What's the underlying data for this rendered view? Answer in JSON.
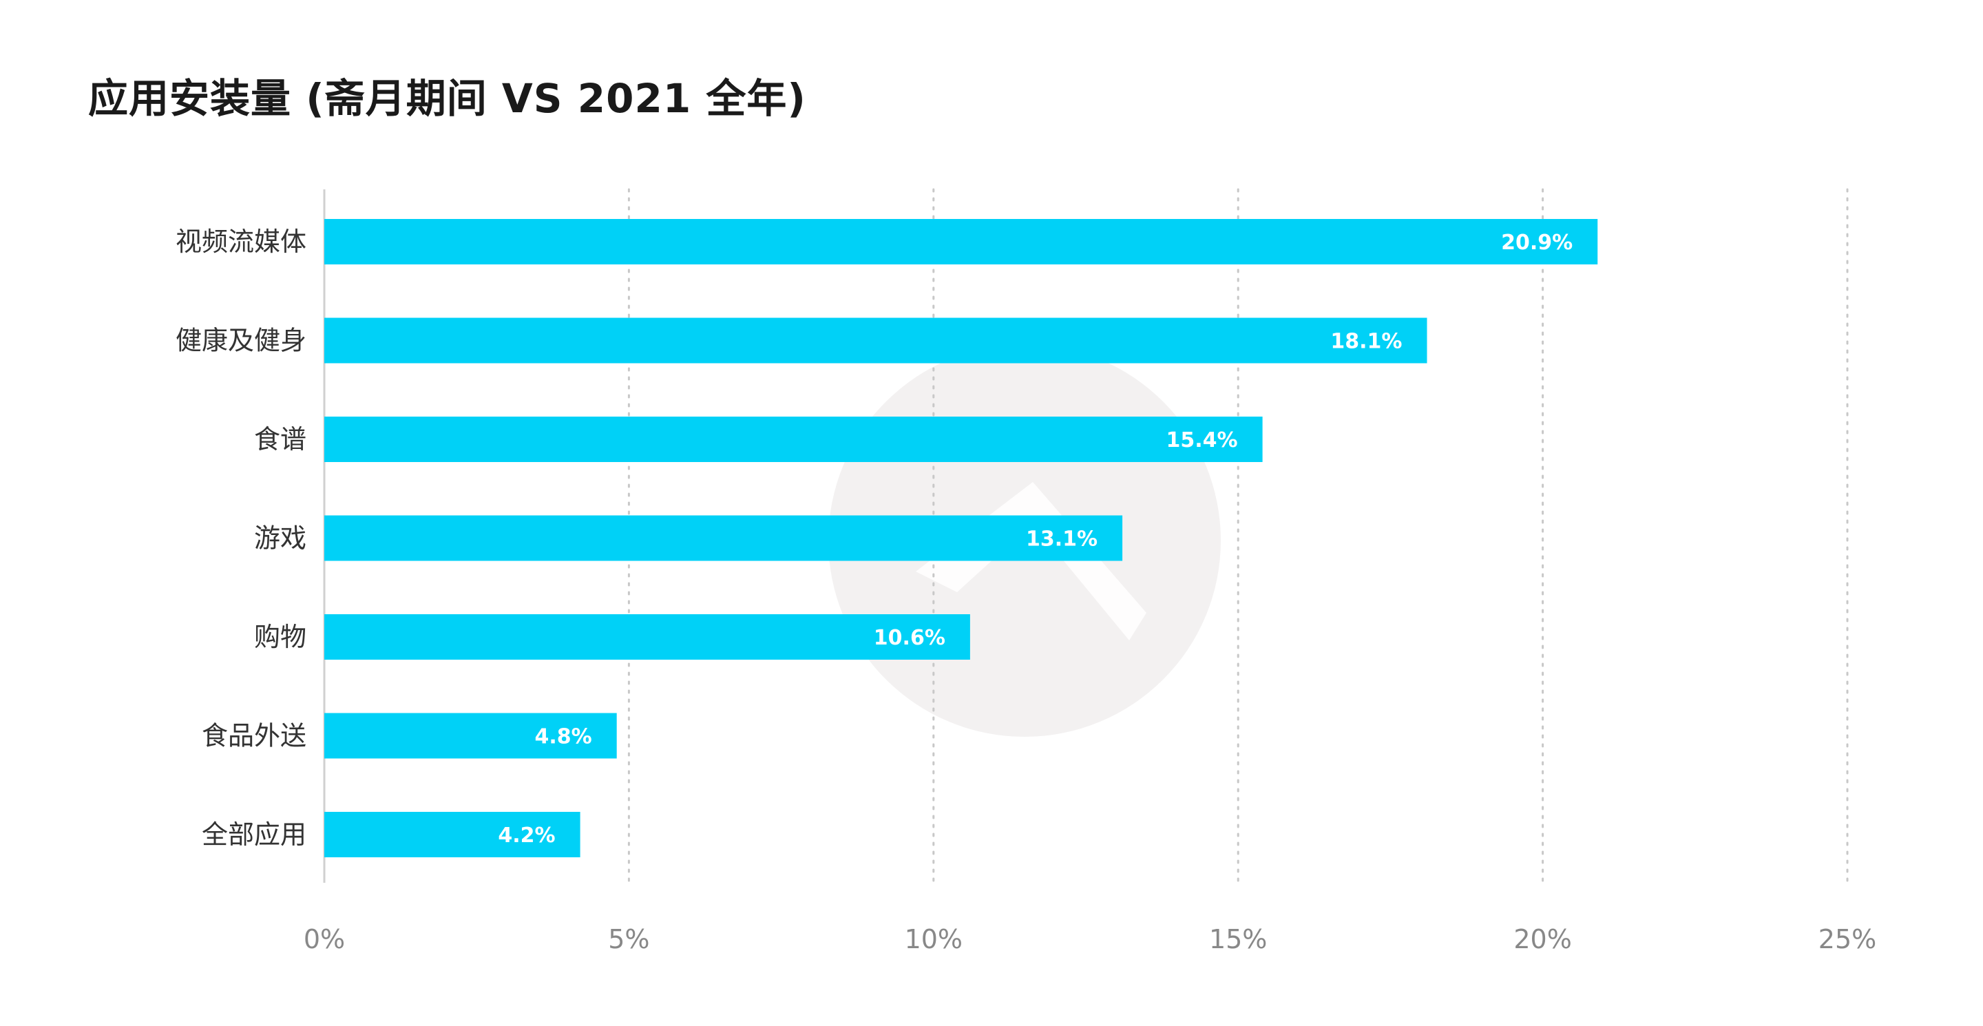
{
  "title": "应用安装量 (斋月期间 VS 2021 全年)",
  "colors": {
    "bar": "#00d1f7",
    "grid": "#c8c8c8",
    "axis": "#d0d0d0",
    "watermark": "#f3f1f1"
  },
  "chart_data": {
    "type": "bar",
    "orientation": "horizontal",
    "categories": [
      "视频流媒体",
      "健康及健身",
      "食谱",
      "游戏",
      "购物",
      "食品外送",
      "全部应用"
    ],
    "values": [
      20.9,
      18.1,
      15.4,
      13.1,
      10.6,
      4.8,
      4.2
    ],
    "value_labels": [
      "20.9%",
      "18.1%",
      "15.4%",
      "13.1%",
      "10.6%",
      "4.8%",
      "4.2%"
    ],
    "xlim": [
      0,
      25
    ],
    "xticks": [
      0,
      5,
      10,
      15,
      20,
      25
    ],
    "xtick_labels": [
      "0%",
      "5%",
      "10%",
      "15%",
      "20%",
      "25%"
    ],
    "grid": true,
    "grid_style": "dotted-vertical"
  }
}
